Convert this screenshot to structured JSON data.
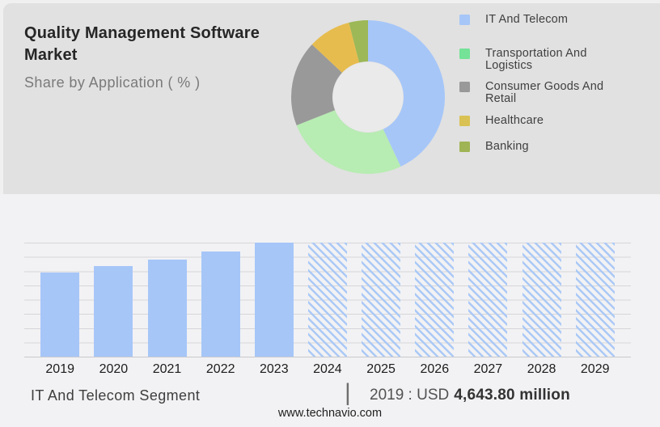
{
  "header": {
    "title": "Quality Management Software Market",
    "subtitle": "Share by Application ( % )"
  },
  "chart_data": [
    {
      "type": "pie",
      "donut": true,
      "title": "Share by Application ( % )",
      "labels": [
        "IT And Telecom",
        "Transportation And Logistics",
        "Consumer Goods And Retail",
        "Healthcare",
        "Banking"
      ],
      "values": [
        43,
        26,
        18,
        9,
        4
      ],
      "unit": "%",
      "slice_colors": [
        "#a6c6f8",
        "#b7ecb2",
        "#999999",
        "#e7bc4e",
        "#9cb857"
      ],
      "legend_swatch_colors": [
        "#a6c6f8",
        "#74e297",
        "#999999",
        "#d9c253",
        "#9fb454"
      ],
      "hole_color": "#eaeaea",
      "legend_position": "right"
    },
    {
      "type": "bar",
      "categories": [
        "2019",
        "2020",
        "2021",
        "2022",
        "2023",
        "2024",
        "2025",
        "2026",
        "2027",
        "2028",
        "2029"
      ],
      "values": [
        4643.8,
        5018,
        5343,
        5819,
        6291,
        null,
        null,
        null,
        null,
        null,
        null
      ],
      "forecast": [
        false,
        false,
        false,
        false,
        false,
        true,
        true,
        true,
        true,
        true,
        true
      ],
      "unit": "USD million",
      "ylim": [
        0,
        6291
      ],
      "grid": true,
      "bar_color": "#a6c6f8",
      "forecast_hatch_color": "#abc9f6",
      "note_visible_value": "2019 : USD 4,643.80 million"
    }
  ],
  "legend": {
    "items": [
      {
        "label": "IT And Telecom"
      },
      {
        "label": "Transportation And Logistics"
      },
      {
        "label": "Consumer Goods And Retail"
      },
      {
        "label": "Healthcare"
      },
      {
        "label": "Banking"
      }
    ]
  },
  "bottom": {
    "segment_label": "IT And Telecom Segment",
    "separator": "|",
    "value_prefix": "2019 : USD",
    "value_bold": "4,643.80 million"
  },
  "footer": {
    "url": "www.technavio.com"
  }
}
